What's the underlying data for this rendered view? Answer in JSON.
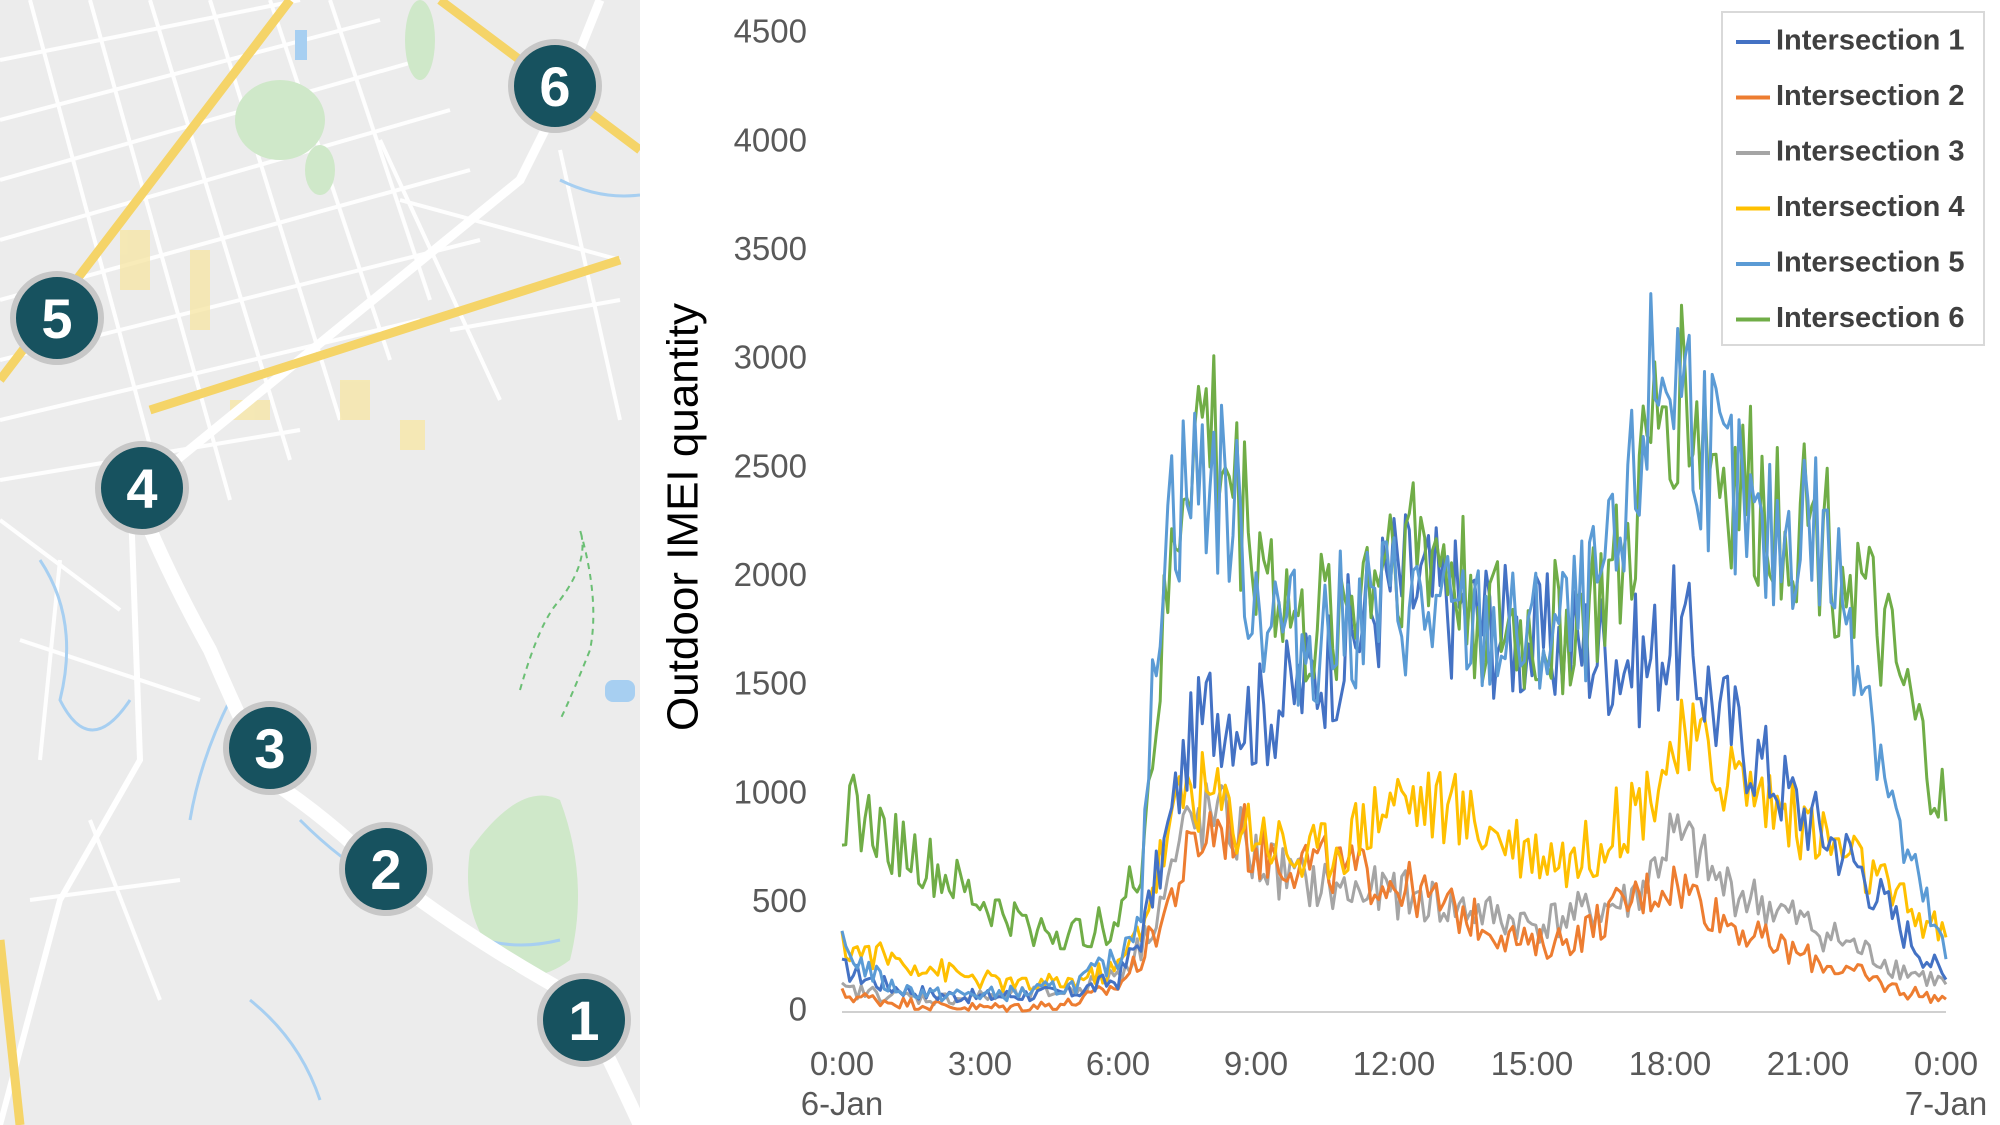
{
  "map": {
    "markers": [
      {
        "label": "1"
      },
      {
        "label": "2"
      },
      {
        "label": "3"
      },
      {
        "label": "4"
      },
      {
        "label": "5"
      },
      {
        "label": "6"
      }
    ],
    "marker_color": "#17525f"
  },
  "chart_data": {
    "type": "line",
    "title": "",
    "xlabel": "",
    "ylabel": "Outdoor IMEI quantity",
    "ylim": [
      0,
      4500
    ],
    "yticks": [
      "0",
      "500",
      "1000",
      "1500",
      "2000",
      "2500",
      "3000",
      "3500",
      "4000",
      "4500"
    ],
    "xlim": [
      0,
      24
    ],
    "xticks": [
      {
        "time": "0:00",
        "date": "6-Jan"
      },
      {
        "time": "3:00",
        "date": ""
      },
      {
        "time": "6:00",
        "date": ""
      },
      {
        "time": "9:00",
        "date": ""
      },
      {
        "time": "12:00",
        "date": ""
      },
      {
        "time": "15:00",
        "date": ""
      },
      {
        "time": "18:00",
        "date": ""
      },
      {
        "time": "21:00",
        "date": ""
      },
      {
        "time": "0:00",
        "date": "7-Jan"
      }
    ],
    "legend_position": "top-right",
    "x": [
      0,
      1,
      2,
      3,
      4,
      5,
      6,
      6.5,
      7,
      7.5,
      8,
      8.5,
      9,
      10,
      11,
      12,
      13,
      14,
      15,
      16,
      17,
      17.5,
      18,
      18.5,
      19,
      20,
      21,
      22,
      23,
      24
    ],
    "series": [
      {
        "name": "Intersection 1",
        "color": "#4472c4",
        "values": [
          200,
          120,
          80,
          70,
          80,
          90,
          150,
          350,
          750,
          1200,
          1400,
          1400,
          1350,
          1500,
          1700,
          2000,
          1900,
          1800,
          1700,
          1700,
          1650,
          1600,
          1750,
          1650,
          1400,
          1150,
          900,
          700,
          400,
          150
        ]
      },
      {
        "name": "Intersection 2",
        "color": "#ed7d31",
        "values": [
          80,
          50,
          30,
          20,
          25,
          40,
          120,
          250,
          450,
          700,
          850,
          850,
          750,
          700,
          650,
          600,
          500,
          400,
          300,
          350,
          500,
          550,
          600,
          550,
          450,
          330,
          250,
          180,
          100,
          60
        ]
      },
      {
        "name": "Intersection 3",
        "color": "#a5a5a5",
        "values": [
          100,
          80,
          60,
          70,
          80,
          100,
          180,
          300,
          550,
          850,
          900,
          850,
          700,
          600,
          550,
          550,
          500,
          450,
          400,
          450,
          500,
          600,
          800,
          750,
          600,
          500,
          400,
          300,
          200,
          130
        ]
      },
      {
        "name": "Intersection 4",
        "color": "#ffc000",
        "values": [
          300,
          250,
          200,
          150,
          120,
          140,
          200,
          400,
          750,
          1050,
          1000,
          900,
          850,
          700,
          800,
          1000,
          950,
          850,
          750,
          700,
          900,
          1000,
          1200,
          1200,
          1150,
          1000,
          850,
          700,
          500,
          350
        ]
      },
      {
        "name": "Intersection 5",
        "color": "#5b9bd5",
        "values": [
          300,
          120,
          80,
          80,
          90,
          120,
          250,
          500,
          2300,
          2400,
          2500,
          2300,
          1900,
          1700,
          1800,
          1900,
          1800,
          1750,
          1700,
          1800,
          2100,
          2800,
          3000,
          2800,
          2500,
          2100,
          2300,
          1800,
          800,
          250
        ]
      },
      {
        "name": "Intersection 6",
        "color": "#70ad47",
        "values": [
          950,
          800,
          650,
          500,
          400,
          350,
          420,
          700,
          1700,
          2600,
          2700,
          2400,
          2200,
          1700,
          1900,
          2200,
          2100,
          1800,
          1700,
          1800,
          2000,
          2500,
          2900,
          2800,
          2500,
          2300,
          2300,
          2000,
          1500,
          900
        ]
      }
    ]
  }
}
